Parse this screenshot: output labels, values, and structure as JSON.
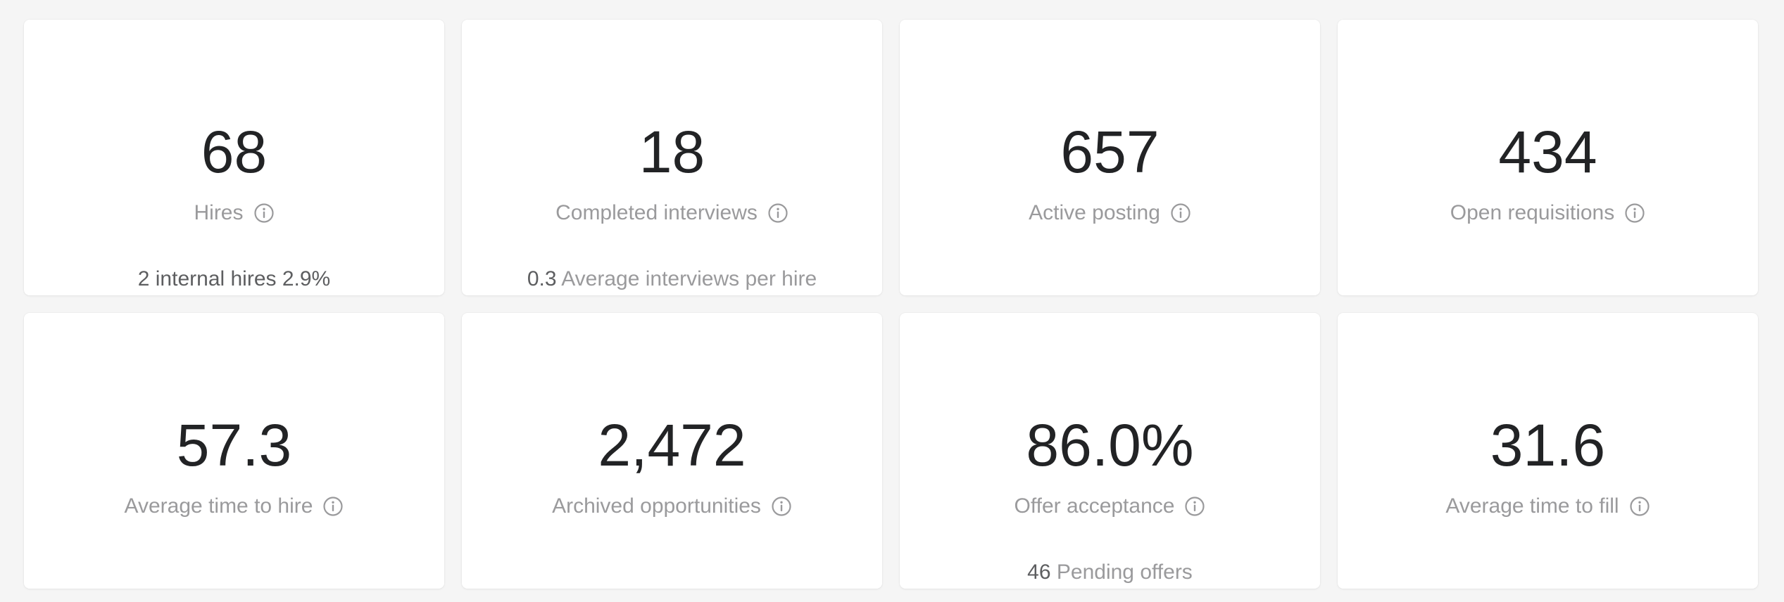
{
  "cards": [
    {
      "value": "68",
      "label": "Hires",
      "info_icon": "info-icon",
      "footer_value": "2 internal hires 2.9%",
      "footer_text": ""
    },
    {
      "value": "18",
      "label": "Completed interviews",
      "info_icon": "info-icon",
      "footer_value": "0.3",
      "footer_text": "Average interviews per hire"
    },
    {
      "value": "657",
      "label": "Active posting",
      "info_icon": "info-icon",
      "footer_value": "",
      "footer_text": ""
    },
    {
      "value": "434",
      "label": "Open requisitions",
      "info_icon": "info-icon",
      "footer_value": "",
      "footer_text": ""
    },
    {
      "value": "57.3",
      "label": "Average time to hire",
      "info_icon": "info-icon",
      "footer_value": "",
      "footer_text": ""
    },
    {
      "value": "2,472",
      "label": "Archived opportunities",
      "info_icon": "info-icon",
      "footer_value": "",
      "footer_text": ""
    },
    {
      "value": "86.0%",
      "label": "Offer acceptance",
      "info_icon": "info-icon",
      "footer_value": "46",
      "footer_text": "Pending offers"
    },
    {
      "value": "31.6",
      "label": "Average time to fill",
      "info_icon": "info-icon",
      "footer_value": "",
      "footer_text": ""
    }
  ],
  "colors": {
    "background": "#f5f5f5",
    "card": "#ffffff",
    "value_text": "#222325",
    "label_text": "#9a9a9c",
    "footer_dark": "#5d5e60"
  }
}
